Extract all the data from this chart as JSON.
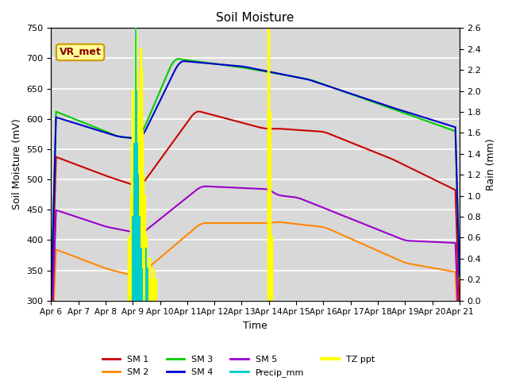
{
  "title": "Soil Moisture",
  "xlabel": "Time",
  "ylabel_left": "Soil Moisture (mV)",
  "ylabel_right": "Rain (mm)",
  "ylim_left": [
    300,
    750
  ],
  "ylim_right": [
    0.0,
    2.6
  ],
  "plot_bg_color": "#d8d8d8",
  "grid_color": "#eeeeee",
  "x_start": 6,
  "x_end": 21,
  "x_ticks": [
    6,
    7,
    8,
    9,
    10,
    11,
    12,
    13,
    14,
    15,
    16,
    17,
    18,
    19,
    20,
    21
  ],
  "x_tick_labels": [
    "Apr 6",
    "Apr 7",
    "Apr 8",
    "Apr 9",
    "Apr 10",
    "Apr 11",
    "Apr 12",
    "Apr 13",
    "Apr 14",
    "Apr 15",
    "Apr 16",
    "Apr 17",
    "Apr 18",
    "Apr 19",
    "Apr 20",
    "Apr 21"
  ],
  "series": {
    "SM1": {
      "color": "#cc0000",
      "label": "SM 1"
    },
    "SM2": {
      "color": "#ff8800",
      "label": "SM 2"
    },
    "SM3": {
      "color": "#00cc00",
      "label": "SM 3"
    },
    "SM4": {
      "color": "#0000cc",
      "label": "SM 4"
    },
    "SM5": {
      "color": "#9900cc",
      "label": "SM 5"
    },
    "Precip_mm": {
      "color": "#00cccc",
      "label": "Precip_mm"
    },
    "TZ_ppt": {
      "color": "#ffff00",
      "label": "TZ ppt"
    }
  },
  "annotation_box": {
    "text": "VR_met",
    "facecolor": "#ffff99",
    "edgecolor": "#cc9900"
  },
  "right_yticks": [
    0.0,
    0.2,
    0.4,
    0.6,
    0.8,
    1.0,
    1.2,
    1.4,
    1.6,
    1.8,
    2.0,
    2.2,
    2.4,
    2.6
  ],
  "left_yticks": [
    300,
    350,
    400,
    450,
    500,
    550,
    600,
    650,
    700,
    750
  ]
}
